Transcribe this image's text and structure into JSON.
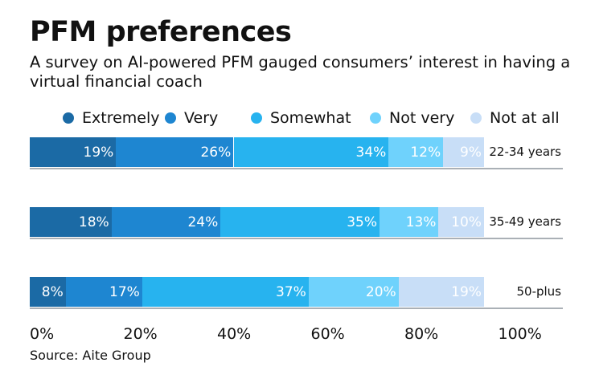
{
  "title": "PFM preferences",
  "subtitle": "A survey on AI-powered PFM gauged consumers’ interest in having a virtual financial coach",
  "source": "Source: Aite Group",
  "chart_data": {
    "type": "bar",
    "orientation": "horizontal",
    "stacked": true,
    "categories": [
      "22-34 years",
      "35-49 years",
      "50-plus"
    ],
    "series": [
      {
        "name": "Extremely",
        "color": "#1b6aa5",
        "values": [
          19,
          18,
          8
        ]
      },
      {
        "name": "Very",
        "color": "#1e86d1",
        "values": [
          26,
          24,
          17
        ]
      },
      {
        "name": "Somewhat",
        "color": "#27b3ef",
        "values": [
          34,
          35,
          37
        ]
      },
      {
        "name": "Not very",
        "color": "#6fd2fc",
        "values": [
          12,
          13,
          20
        ]
      },
      {
        "name": "Not at all",
        "color": "#c8def7",
        "values": [
          9,
          10,
          19
        ]
      }
    ],
    "data_labels": [
      [
        "19%",
        "26%",
        "34%",
        "12%",
        "9%"
      ],
      [
        "18%",
        "24%",
        "35%",
        "13%",
        "10%"
      ],
      [
        "8%",
        "17%",
        "37%",
        "20%",
        "19%"
      ]
    ],
    "x_ticks": [
      "0%",
      "20%",
      "40%",
      "60%",
      "80%",
      "100%"
    ],
    "xlim": [
      0,
      100
    ],
    "legend_position": "top",
    "grid": false
  }
}
